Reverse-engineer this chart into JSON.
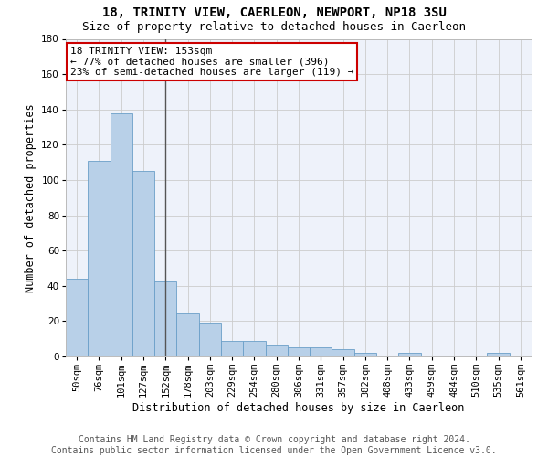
{
  "title": "18, TRINITY VIEW, CAERLEON, NEWPORT, NP18 3SU",
  "subtitle": "Size of property relative to detached houses in Caerleon",
  "xlabel": "Distribution of detached houses by size in Caerleon",
  "ylabel": "Number of detached properties",
  "categories": [
    "50sqm",
    "76sqm",
    "101sqm",
    "127sqm",
    "152sqm",
    "178sqm",
    "203sqm",
    "229sqm",
    "254sqm",
    "280sqm",
    "306sqm",
    "331sqm",
    "357sqm",
    "382sqm",
    "408sqm",
    "433sqm",
    "459sqm",
    "484sqm",
    "510sqm",
    "535sqm",
    "561sqm"
  ],
  "values": [
    44,
    111,
    138,
    105,
    43,
    25,
    19,
    9,
    9,
    6,
    5,
    5,
    4,
    2,
    0,
    2,
    0,
    0,
    0,
    2,
    0
  ],
  "bar_color": "#b8d0e8",
  "bar_edge_color": "#6a9fc8",
  "annotation_text": "18 TRINITY VIEW: 153sqm\n← 77% of detached houses are smaller (396)\n23% of semi-detached houses are larger (119) →",
  "annotation_box_color": "#ffffff",
  "annotation_box_edge_color": "#cc0000",
  "vline_color": "#555555",
  "ylim": [
    0,
    180
  ],
  "yticks": [
    0,
    20,
    40,
    60,
    80,
    100,
    120,
    140,
    160,
    180
  ],
  "grid_color": "#cccccc",
  "background_color": "#eef2fa",
  "footer_line1": "Contains HM Land Registry data © Crown copyright and database right 2024.",
  "footer_line2": "Contains public sector information licensed under the Open Government Licence v3.0.",
  "title_fontsize": 10,
  "subtitle_fontsize": 9,
  "axis_label_fontsize": 8.5,
  "tick_fontsize": 7.5,
  "annotation_fontsize": 8,
  "footer_fontsize": 7
}
